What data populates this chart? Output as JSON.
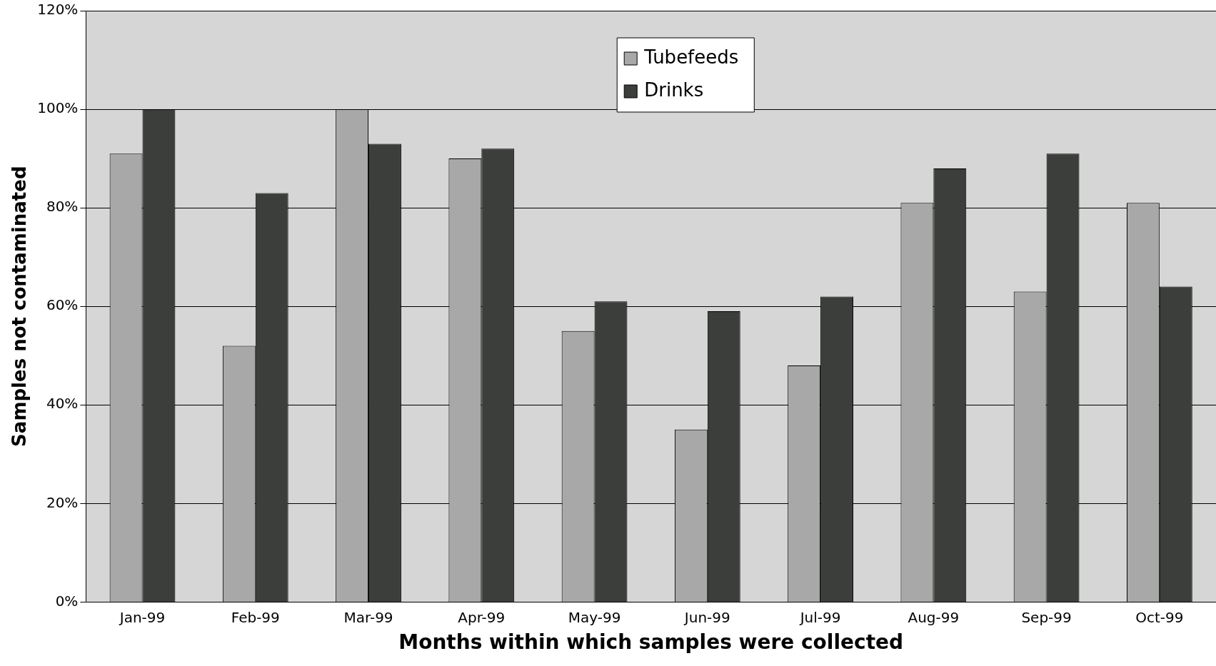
{
  "chart_data": {
    "type": "bar",
    "xlabel": "Months within which samples were collected",
    "ylabel": "Samples not contaminated",
    "categories": [
      "Jan-99",
      "Feb-99",
      "Mar-99",
      "Apr-99",
      "May-99",
      "Jun-99",
      "Jul-99",
      "Aug-99",
      "Sep-99",
      "Oct-99"
    ],
    "series": [
      {
        "name": "Tubefeeds",
        "color": "#a8a8a8",
        "values": [
          91,
          52,
          100,
          90,
          55,
          35,
          48,
          81,
          63,
          81
        ]
      },
      {
        "name": "Drinks",
        "color": "#3b3e3b",
        "values": [
          100,
          83,
          93,
          92,
          61,
          59,
          62,
          88,
          91,
          64
        ]
      }
    ],
    "ylim": [
      0,
      120
    ],
    "yticks": [
      {
        "value": 0,
        "label": "0%"
      },
      {
        "value": 20,
        "label": "20%"
      },
      {
        "value": 40,
        "label": "40%"
      },
      {
        "value": 60,
        "label": "60%"
      },
      {
        "value": 80,
        "label": "80%"
      },
      {
        "value": 100,
        "label": "100%"
      },
      {
        "value": 120,
        "label": "120%"
      }
    ],
    "grid": "y",
    "legend": "top"
  }
}
